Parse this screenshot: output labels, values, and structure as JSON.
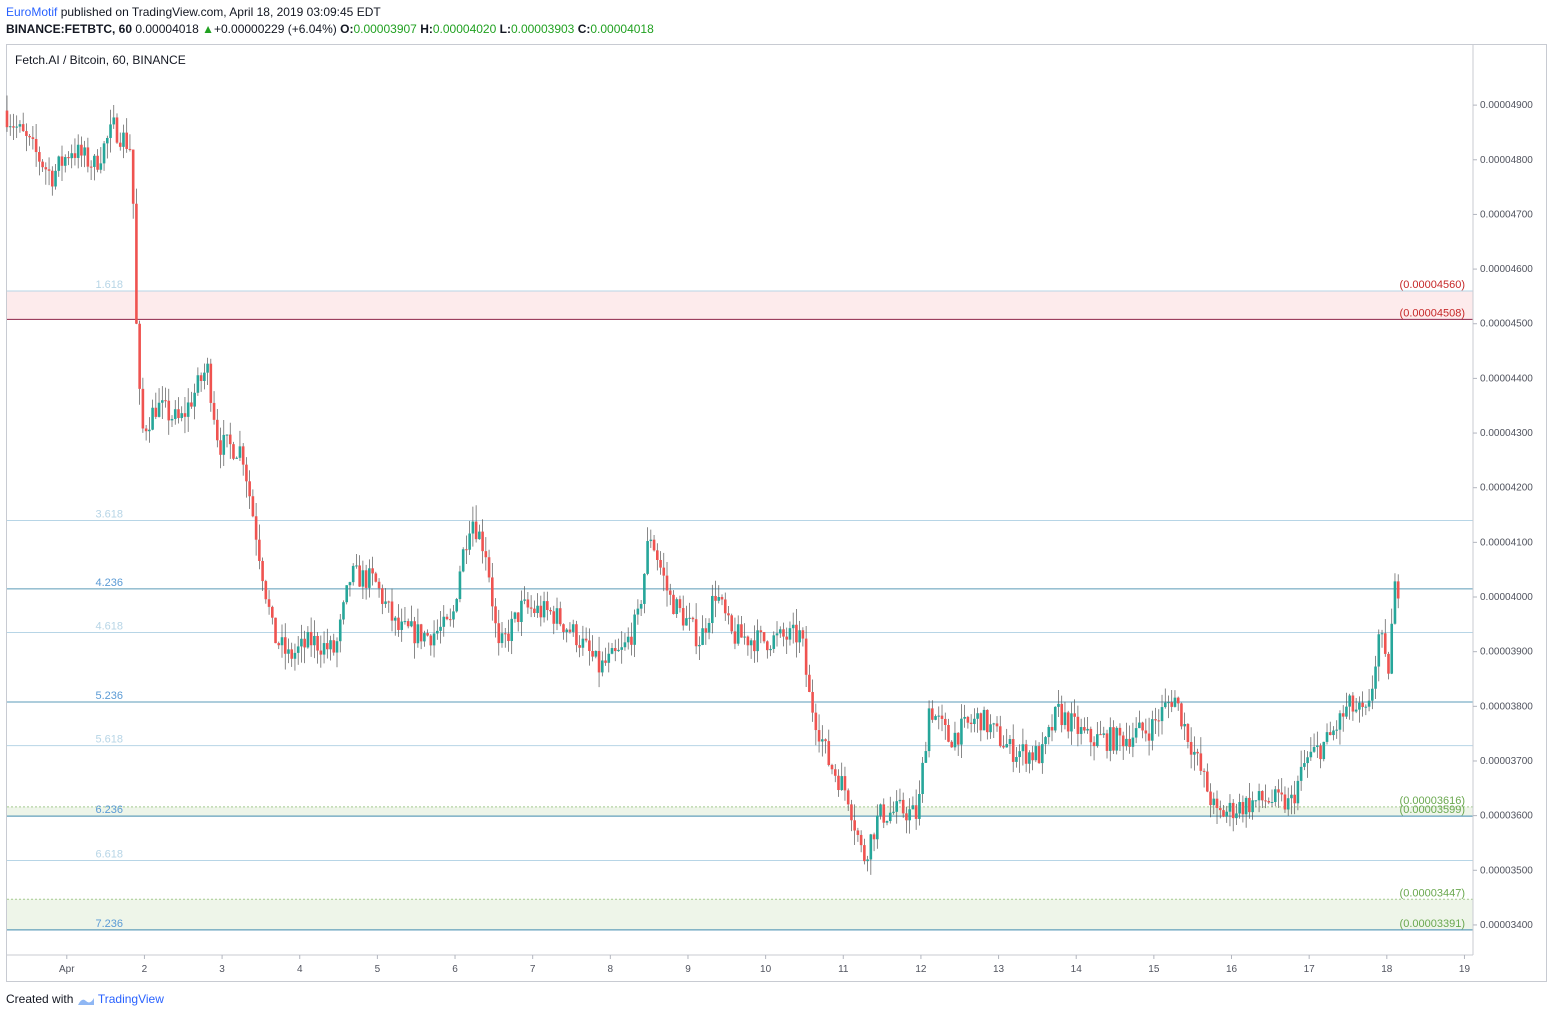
{
  "header": {
    "author": "EuroMotif",
    "published_text": "published on TradingView.com, April 18, 2019 03:09:45 EDT",
    "symbol": "BINANCE:FETBTC, 60",
    "last_price": "0.00004018",
    "change_arrow": "▲",
    "change": "+0.00000229 (+6.04%)",
    "open_label": "O:",
    "open": "0.00003907",
    "high_label": "H:",
    "high": "0.00004020",
    "low_label": "L:",
    "low": "0.00003903",
    "close_label": "C:",
    "close": "0.00004018"
  },
  "footer": {
    "created_with": "Created with",
    "brand": "TradingView"
  },
  "colors": {
    "up": "#26a69a",
    "down": "#ef5350",
    "fib_line": "#5b9bb8",
    "fib_light": "#b7d5e6",
    "red_zone": "#fdebec",
    "green_zone": "#eef5e9",
    "red_text": "#c62828",
    "green_text": "#6aa84f"
  },
  "chart_data": {
    "type": "candlestick",
    "title": "Fetch.AI / Bitcoin, 60, BINANCE",
    "y_ticks": [
      "0.00004900",
      "0.00004800",
      "0.00004700",
      "0.00004600",
      "0.00004500",
      "0.00004400",
      "0.00004300",
      "0.00004200",
      "0.00004100",
      "0.00004000",
      "0.00003900",
      "0.00003800",
      "0.00003700",
      "0.00003600",
      "0.00003500",
      "0.00003400"
    ],
    "y_tick_values": [
      4.9e-05,
      4.8e-05,
      4.7e-05,
      4.6e-05,
      4.5e-05,
      4.4e-05,
      4.3e-05,
      4.2e-05,
      4.1e-05,
      4e-05,
      3.9e-05,
      3.8e-05,
      3.7e-05,
      3.6e-05,
      3.5e-05,
      3.4e-05
    ],
    "ylim": [
      3.345e-05,
      5.01e-05
    ],
    "x_ticks": [
      "Apr",
      "2",
      "3",
      "4",
      "5",
      "6",
      "7",
      "8",
      "9",
      "10",
      "11",
      "12",
      "13",
      "14",
      "15",
      "16",
      "17",
      "18",
      "19"
    ],
    "x_tick_days": [
      1,
      2,
      3,
      4,
      5,
      6,
      7,
      8,
      9,
      10,
      11,
      12,
      13,
      14,
      15,
      16,
      17,
      18,
      19
    ],
    "xlim": [
      0.23,
      19.11
    ],
    "fib_levels": [
      {
        "ratio": "1.618",
        "price": 4.56e-05,
        "style": "light"
      },
      {
        "ratio": "3.618",
        "price": 4.14e-05,
        "style": "light"
      },
      {
        "ratio": "4.236",
        "price": 4.015e-05,
        "style": "strong"
      },
      {
        "ratio": "4.618",
        "price": 3.935e-05,
        "style": "light"
      },
      {
        "ratio": "5.236",
        "price": 3.808e-05,
        "style": "strong"
      },
      {
        "ratio": "5.618",
        "price": 3.728e-05,
        "style": "light"
      },
      {
        "ratio": "6.236",
        "price": 3.599e-05,
        "style": "strong"
      },
      {
        "ratio": "6.618",
        "price": 3.518e-05,
        "style": "light"
      },
      {
        "ratio": "7.236",
        "price": 3.391e-05,
        "style": "strong"
      }
    ],
    "zones": [
      {
        "top": 4.56e-05,
        "bottom": 4.508e-05,
        "top_label": "(0.00004560)",
        "bottom_label": "(0.00004508)",
        "kind": "resistance"
      },
      {
        "top": 3.616e-05,
        "bottom": 3.599e-05,
        "top_label": "(0.00003616)",
        "bottom_label": "(0.00003599)",
        "kind": "support"
      },
      {
        "top": 3.447e-05,
        "bottom": 3.391e-05,
        "top_label": "(0.00003447)",
        "bottom_label": "(0.00003391)",
        "kind": "support"
      }
    ],
    "price_path": [
      [
        0.23,
        4.89e-05
      ],
      [
        0.55,
        4.83e-05
      ],
      [
        0.85,
        4.77e-05
      ],
      [
        1.1,
        4.82e-05
      ],
      [
        1.4,
        4.79e-05
      ],
      [
        1.65,
        4.86e-05
      ],
      [
        1.88,
        4.82e-05
      ],
      [
        1.93,
        4.52e-05
      ],
      [
        2.0,
        4.3e-05
      ],
      [
        2.2,
        4.35e-05
      ],
      [
        2.5,
        4.32e-05
      ],
      [
        2.85,
        4.42e-05
      ],
      [
        3.0,
        4.28e-05
      ],
      [
        3.3,
        4.27e-05
      ],
      [
        3.5,
        4.1e-05
      ],
      [
        3.7,
        3.93e-05
      ],
      [
        3.9,
        3.89e-05
      ],
      [
        4.2,
        3.92e-05
      ],
      [
        4.5,
        3.9e-05
      ],
      [
        4.7,
        4.04e-05
      ],
      [
        5.0,
        4.03e-05
      ],
      [
        5.3,
        3.94e-05
      ],
      [
        5.7,
        3.93e-05
      ],
      [
        6.0,
        3.95e-05
      ],
      [
        6.1,
        4.05e-05
      ],
      [
        6.25,
        4.15e-05
      ],
      [
        6.45,
        4.08e-05
      ],
      [
        6.6,
        3.9e-05
      ],
      [
        6.9,
        3.98e-05
      ],
      [
        7.3,
        3.97e-05
      ],
      [
        7.6,
        3.93e-05
      ],
      [
        7.9,
        3.87e-05
      ],
      [
        8.2,
        3.9e-05
      ],
      [
        8.4,
        3.96e-05
      ],
      [
        8.55,
        4.12e-05
      ],
      [
        8.8,
        4e-05
      ],
      [
        9.2,
        3.92e-05
      ],
      [
        9.4,
        4.01e-05
      ],
      [
        9.6,
        3.93e-05
      ],
      [
        10.0,
        3.92e-05
      ],
      [
        10.5,
        3.93e-05
      ],
      [
        10.6,
        3.82e-05
      ],
      [
        10.85,
        3.7e-05
      ],
      [
        11.1,
        3.64e-05
      ],
      [
        11.3,
        3.52e-05
      ],
      [
        11.5,
        3.6e-05
      ],
      [
        11.8,
        3.61e-05
      ],
      [
        12.0,
        3.6e-05
      ],
      [
        12.15,
        3.8e-05
      ],
      [
        12.4,
        3.74e-05
      ],
      [
        12.8,
        3.78e-05
      ],
      [
        13.2,
        3.72e-05
      ],
      [
        13.6,
        3.71e-05
      ],
      [
        13.8,
        3.79e-05
      ],
      [
        14.2,
        3.74e-05
      ],
      [
        14.6,
        3.74e-05
      ],
      [
        15.0,
        3.76e-05
      ],
      [
        15.3,
        3.82e-05
      ],
      [
        15.6,
        3.7e-05
      ],
      [
        15.85,
        3.6e-05
      ],
      [
        16.2,
        3.62e-05
      ],
      [
        16.5,
        3.63e-05
      ],
      [
        16.8,
        3.62e-05
      ],
      [
        17.0,
        3.7e-05
      ],
      [
        17.3,
        3.74e-05
      ],
      [
        17.55,
        3.8e-05
      ],
      [
        17.8,
        3.78e-05
      ],
      [
        17.95,
        3.94e-05
      ],
      [
        18.05,
        3.85e-05
      ],
      [
        18.15,
        4.018e-05
      ]
    ],
    "grid": false
  }
}
